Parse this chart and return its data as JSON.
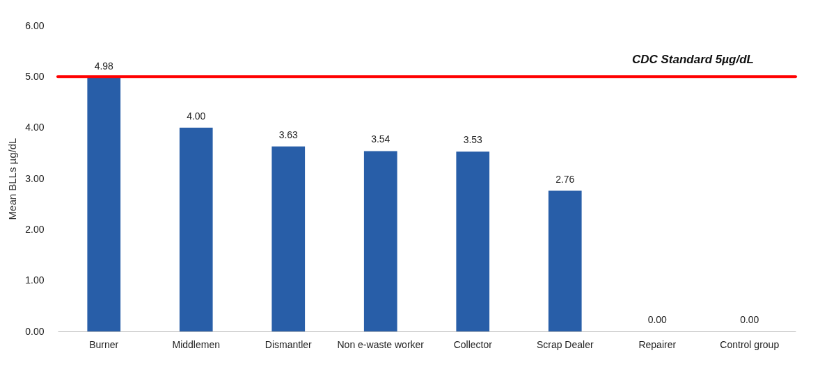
{
  "chart_data": {
    "type": "bar",
    "ylabel": "Mean BLLs µg/dL",
    "categories": [
      "Burner",
      "Middlemen",
      "Dismantler",
      "Non e-waste worker",
      "Collector",
      "Scrap Dealer",
      "Repairer",
      "Control group"
    ],
    "values": [
      4.98,
      4.0,
      3.63,
      3.54,
      3.53,
      2.76,
      0,
      0
    ],
    "value_labels": [
      "4.98",
      "4.00",
      "3.63",
      "3.54",
      "3.53",
      "2.76",
      "0.00",
      "0.00"
    ],
    "color": "#285ea8",
    "ylim": [
      0,
      6
    ],
    "yticks": [
      {
        "value": 0,
        "label": "0.00"
      },
      {
        "value": 1,
        "label": "1.00"
      },
      {
        "value": 2,
        "label": "2.00"
      },
      {
        "value": 3,
        "label": "3.00"
      },
      {
        "value": 4,
        "label": "4.00"
      },
      {
        "value": 5,
        "label": "5.00"
      },
      {
        "value": 6,
        "label": "6.00"
      }
    ],
    "grid": false,
    "ref_lines": [
      {
        "axis": "y",
        "value": 5,
        "label": "CDC Standard 5µg/dL",
        "color": "#ff0000",
        "line_style": "solid"
      }
    ]
  }
}
